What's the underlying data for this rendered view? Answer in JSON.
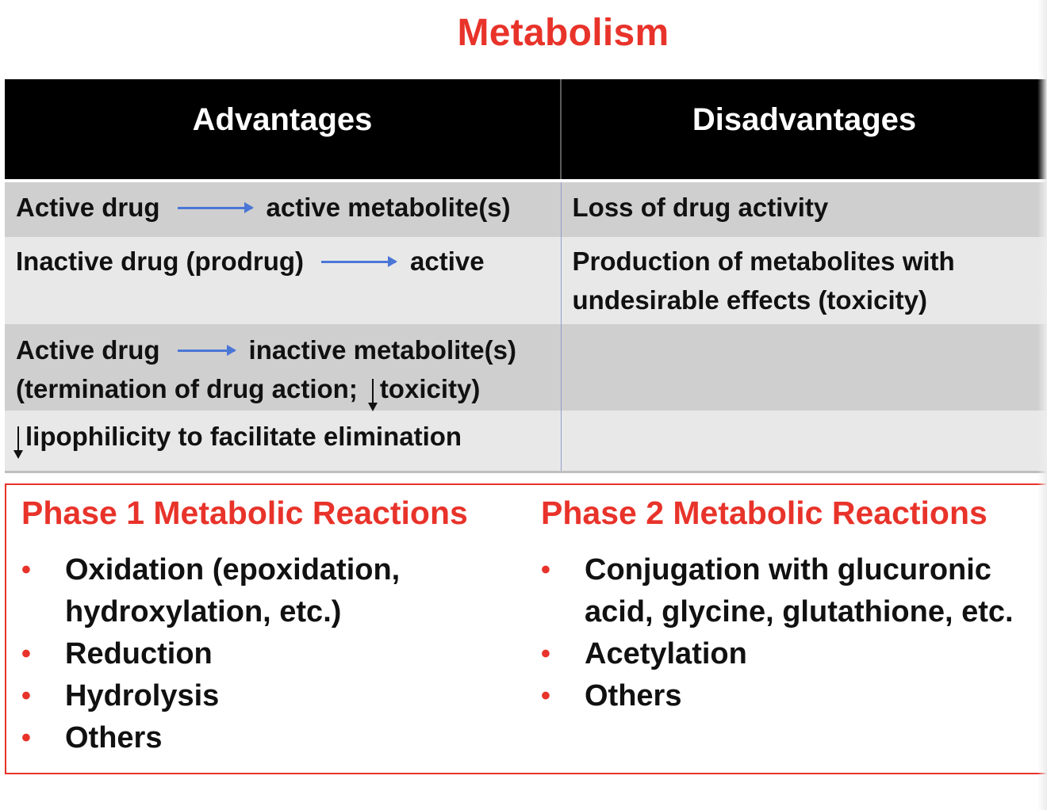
{
  "title": "Metabolism",
  "table": {
    "headers": {
      "advantages": "Advantages",
      "disadvantages": "Disadvantages"
    },
    "rows": [
      {
        "adv_left": "Active drug",
        "adv_right": "active metabolite(s)",
        "disadv": "Loss of drug activity"
      },
      {
        "adv_left": "Inactive drug (prodrug)",
        "adv_right": "active",
        "disadv_line1": "Production of metabolites with",
        "disadv_line2": "undesirable effects (toxicity)"
      },
      {
        "adv_left": "Active drug",
        "adv_right": "inactive metabolite(s)",
        "adv_line2_a": "(termination of drug action;",
        "adv_line2_b": "toxicity)"
      },
      {
        "adv_text": "lipophilicity to facilitate elimination"
      }
    ]
  },
  "phase1": {
    "title": "Phase 1 Metabolic Reactions",
    "items": [
      {
        "line1": "Oxidation (epoxidation,",
        "line2": "hydroxylation, etc.)"
      },
      {
        "line1": "Reduction"
      },
      {
        "line1": "Hydrolysis"
      },
      {
        "line1": "Others"
      }
    ]
  },
  "phase2": {
    "title": "Phase 2 Metabolic Reactions",
    "items": [
      {
        "line1": "Conjugation with glucuronic",
        "line2": "acid, glycine, glutathione, etc."
      },
      {
        "line1": "Acetylation"
      },
      {
        "line1": "Others"
      }
    ]
  },
  "bullet_glyph": "•",
  "colors": {
    "accent_red": "#e8332a",
    "arrow_blue": "#4a76d6",
    "header_black": "#000000",
    "row_dark": "#cfcfcf",
    "row_light": "#e8e8e8"
  }
}
